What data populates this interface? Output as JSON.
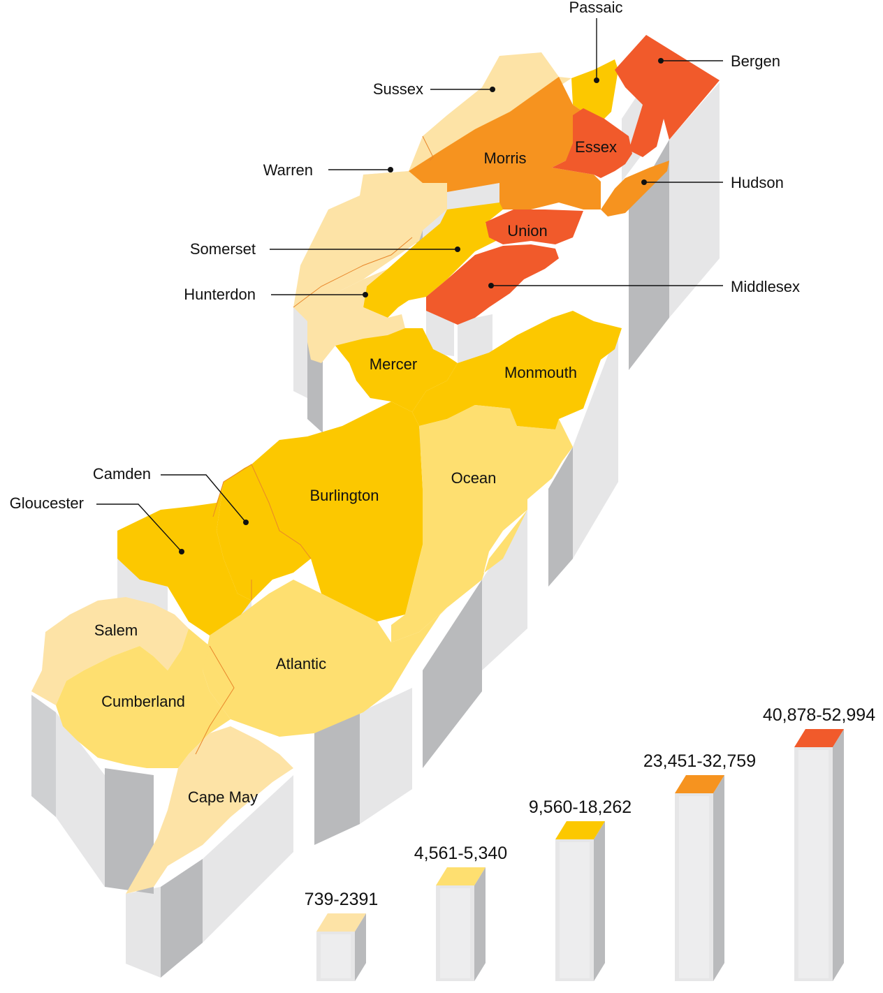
{
  "colors": {
    "tier1": "#fde3a6",
    "tier2": "#fedf70",
    "tier3": "#fcc800",
    "tier4": "#f6931f",
    "tier5": "#f15a2b",
    "side_light": "#e6e6e7",
    "side_dark": "#b9babc"
  },
  "counties": {
    "passaic": {
      "name": "Passaic",
      "tier": 3
    },
    "bergen": {
      "name": "Bergen",
      "tier": 5
    },
    "sussex": {
      "name": "Sussex",
      "tier": 1
    },
    "morris": {
      "name": "Morris",
      "tier": 4
    },
    "essex": {
      "name": "Essex",
      "tier": 5
    },
    "warren": {
      "name": "Warren",
      "tier": 1
    },
    "hudson": {
      "name": "Hudson",
      "tier": 4
    },
    "somerset": {
      "name": "Somerset",
      "tier": 3
    },
    "union": {
      "name": "Union",
      "tier": 5
    },
    "hunterdon": {
      "name": "Hunterdon",
      "tier": 1
    },
    "middlesex": {
      "name": "Middlesex",
      "tier": 5
    },
    "mercer": {
      "name": "Mercer",
      "tier": 3
    },
    "monmouth": {
      "name": "Monmouth",
      "tier": 3
    },
    "camden": {
      "name": "Camden",
      "tier": 3
    },
    "burlington": {
      "name": "Burlington",
      "tier": 3
    },
    "ocean": {
      "name": "Ocean",
      "tier": 2
    },
    "gloucester": {
      "name": "Gloucester",
      "tier": 3
    },
    "salem": {
      "name": "Salem",
      "tier": 1
    },
    "atlantic": {
      "name": "Atlantic",
      "tier": 2
    },
    "cumberland": {
      "name": "Cumberland",
      "tier": 2
    },
    "cape_may": {
      "name": "Cape May",
      "tier": 1
    }
  },
  "legend": [
    {
      "label": "739-2391",
      "tier": 1,
      "level": 0.12
    },
    {
      "label": "4,561-5,340",
      "tier": 2,
      "level": 0.34
    },
    {
      "label": "9,560-18,262",
      "tier": 3,
      "level": 0.56
    },
    {
      "label": "23,451-32,759",
      "tier": 4,
      "level": 0.78
    },
    {
      "label": "40,878-52,994",
      "tier": 5,
      "level": 1.0
    }
  ]
}
